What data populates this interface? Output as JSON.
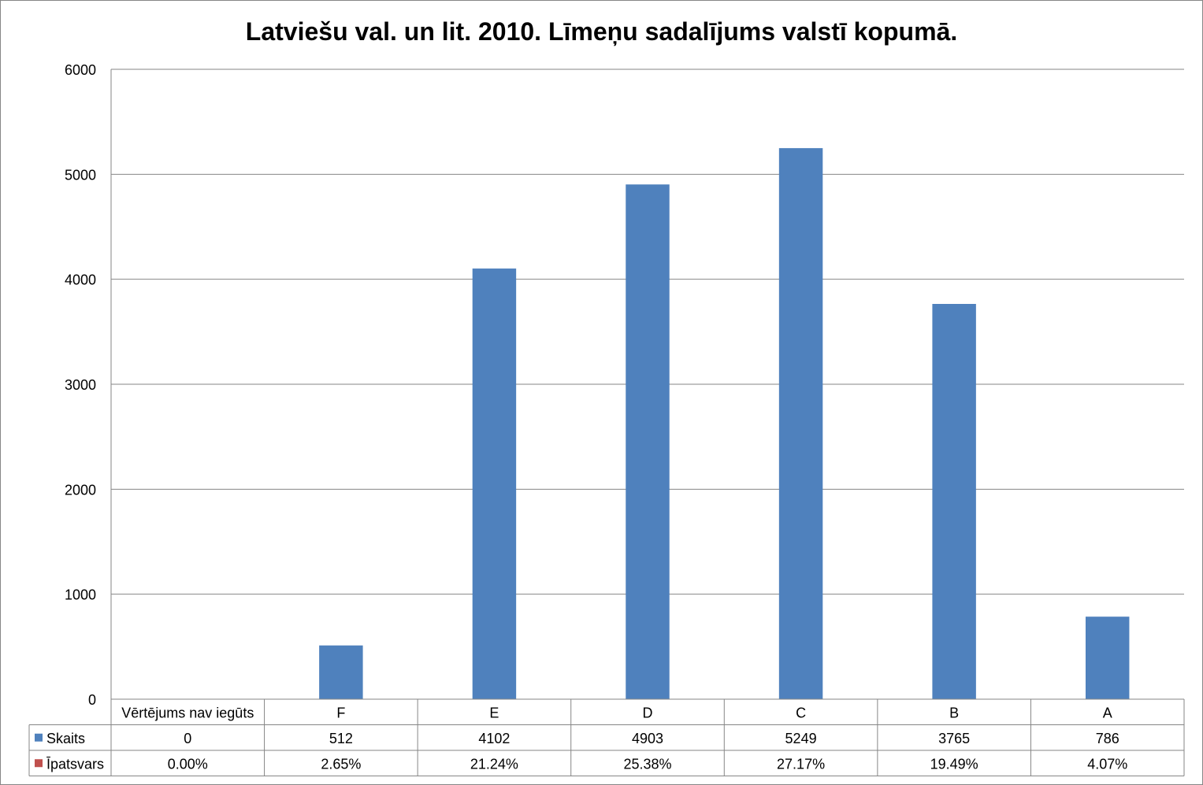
{
  "chart_data": {
    "type": "bar",
    "title": "Latviešu val. un lit. 2010. Līmeņu sadalījums valstī kopumā.",
    "categories": [
      "Vērtējums nav iegūts",
      "F",
      "E",
      "D",
      "C",
      "B",
      "A"
    ],
    "series": [
      {
        "name": "Skaits",
        "color": "#4F81BD",
        "values": [
          0,
          512,
          4102,
          4903,
          5249,
          3765,
          786
        ],
        "labels": [
          "0",
          "512",
          "4102",
          "4903",
          "5249",
          "3765",
          "786"
        ]
      },
      {
        "name": "Īpatsvars",
        "color": "#C0504D",
        "values": [
          0.0,
          2.65,
          21.24,
          25.38,
          27.17,
          19.49,
          4.07
        ],
        "labels": [
          "0.00%",
          "2.65%",
          "21.24%",
          "25.38%",
          "27.17%",
          "19.49%",
          "4.07%"
        ]
      }
    ],
    "ylim": [
      0,
      6000
    ],
    "yticks": [
      "0",
      "1000",
      "2000",
      "3000",
      "4000",
      "5000",
      "6000"
    ],
    "grid": true,
    "legend": "data-table-left",
    "xlabel": "",
    "ylabel": ""
  }
}
